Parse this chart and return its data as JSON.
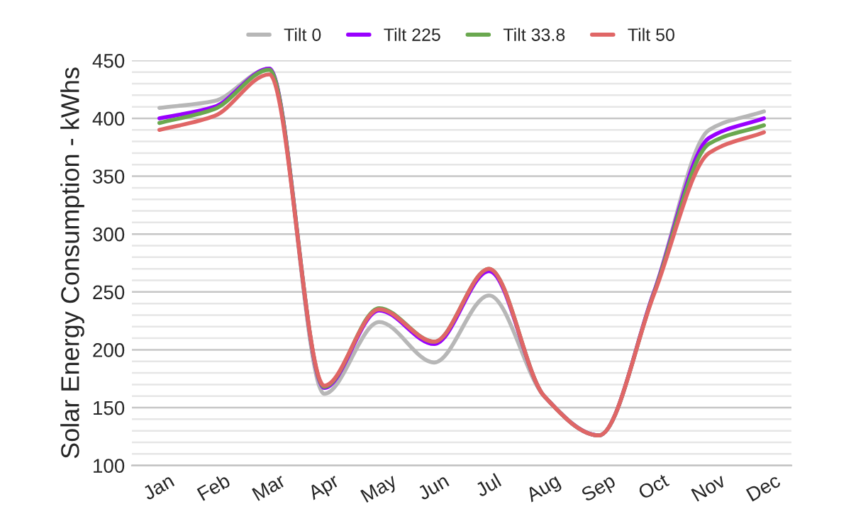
{
  "chart_data": {
    "type": "line",
    "ylabel": "Solar Energy Consumption - kWhs",
    "categories": [
      "Jan",
      "Feb",
      "Mar",
      "Apr",
      "May",
      "Jun",
      "Jul",
      "Aug",
      "Sep",
      "Oct",
      "Nov",
      "Dec"
    ],
    "series": [
      {
        "name": "Tilt 0",
        "color": "#b7b7b7",
        "values": [
          409,
          415,
          443,
          162,
          224,
          189,
          247,
          160,
          126,
          250,
          390,
          406
        ]
      },
      {
        "name": "Tilt 225",
        "color": "#9900ff",
        "values": [
          400,
          410,
          443,
          167,
          234,
          205,
          268,
          160,
          126,
          250,
          383,
          400
        ]
      },
      {
        "name": "Tilt 33.8",
        "color": "#6aa84f",
        "values": [
          396,
          408,
          442,
          168,
          236,
          207,
          270,
          160,
          126,
          249,
          378,
          394
        ]
      },
      {
        "name": "Tilt 50",
        "color": "#e06666",
        "values": [
          390,
          402,
          438,
          169,
          235,
          207,
          270,
          160,
          126,
          248,
          370,
          388
        ]
      }
    ],
    "ylim": [
      100,
      450
    ],
    "yticks": [
      100,
      {
        "value": 110,
        "label": null
      },
      {
        "value": 120,
        "label": null
      },
      {
        "value": 130,
        "label": null
      },
      {
        "value": 140,
        "label": null
      },
      150,
      {
        "value": 160,
        "label": null
      },
      {
        "value": 170,
        "label": null
      },
      {
        "value": 180,
        "label": null
      },
      {
        "value": 190,
        "label": null
      },
      200,
      {
        "value": 210,
        "label": null
      },
      {
        "value": 220,
        "label": null
      },
      {
        "value": 230,
        "label": null
      },
      {
        "value": 240,
        "label": null
      },
      250,
      {
        "value": 260,
        "label": null
      },
      {
        "value": 270,
        "label": null
      },
      {
        "value": 280,
        "label": null
      },
      {
        "value": 290,
        "label": null
      },
      300,
      {
        "value": 310,
        "label": null
      },
      {
        "value": 320,
        "label": null
      },
      {
        "value": 330,
        "label": null
      },
      {
        "value": 340,
        "label": null
      },
      350,
      {
        "value": 360,
        "label": null
      },
      {
        "value": 370,
        "label": null
      },
      {
        "value": 380,
        "label": null
      },
      {
        "value": 390,
        "label": null
      },
      400,
      {
        "value": 410,
        "label": null
      },
      {
        "value": 420,
        "label": null
      },
      {
        "value": 430,
        "label": null
      },
      {
        "value": 440,
        "label": null
      },
      450
    ],
    "grid": "y",
    "legend": "top",
    "marker": "none",
    "line_style": "solid"
  }
}
